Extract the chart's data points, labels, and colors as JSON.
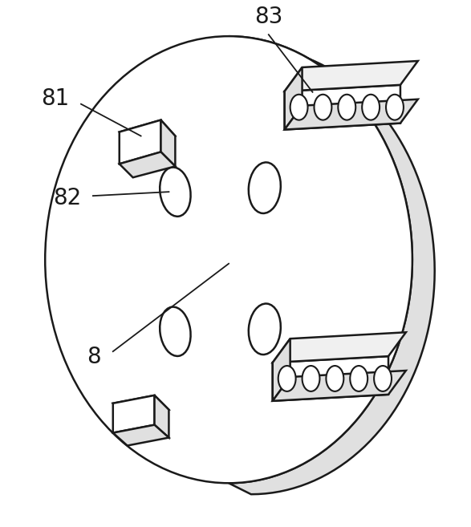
{
  "bg_color": "#ffffff",
  "line_color": "#1a1a1a",
  "lw": 1.8,
  "figsize": [
    5.87,
    6.57
  ],
  "dpi": 100,
  "label_fontsize": 20
}
